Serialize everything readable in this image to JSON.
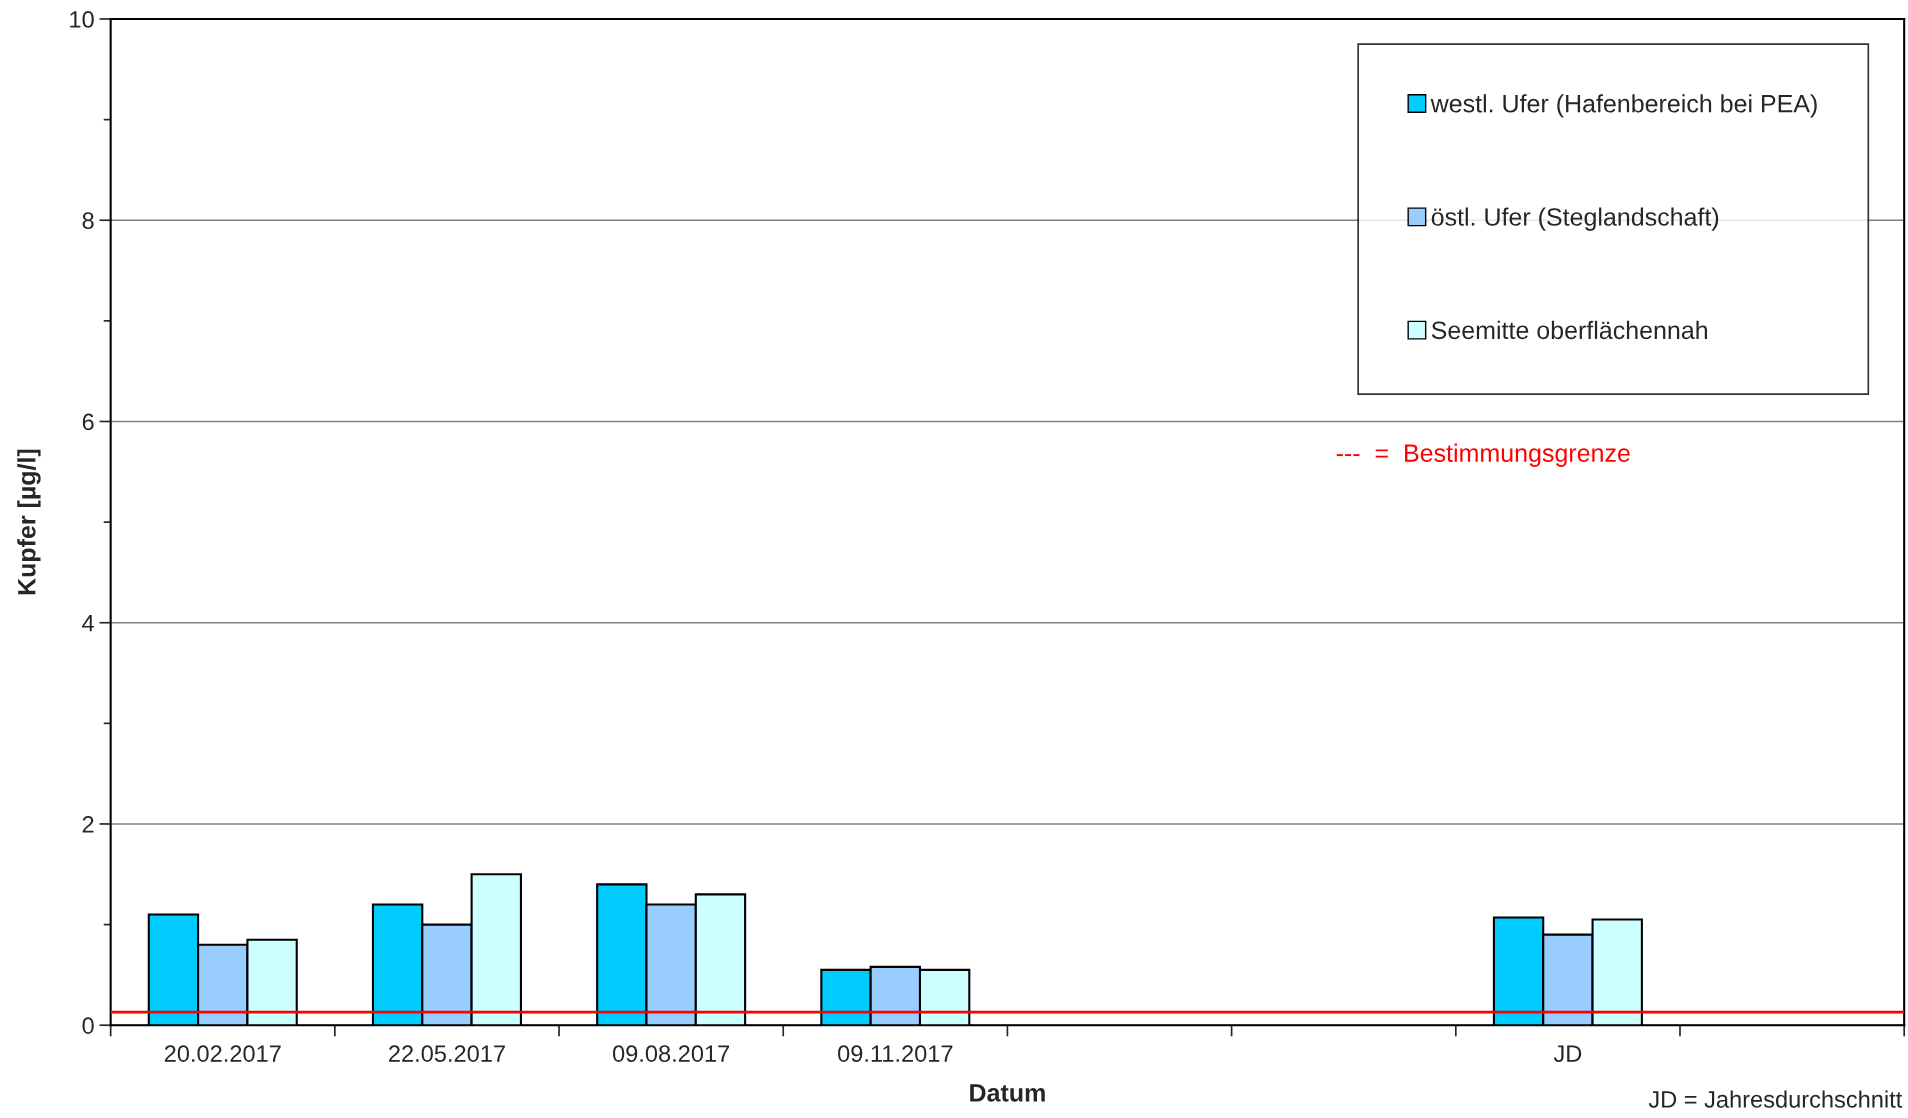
{
  "chart_data": {
    "type": "bar",
    "xlabel": "Datum",
    "ylabel": "Kupfer [µg/l]",
    "categories": [
      "20.02.2017",
      "22.05.2017",
      "09.08.2017",
      "09.11.2017",
      null,
      null,
      "JD",
      null
    ],
    "series": [
      {
        "name": "westl. Ufer (Hafenbereich bei PEA)",
        "color": "#00ccff",
        "values": [
          1.1,
          1.2,
          1.4,
          0.55,
          null,
          null,
          1.07,
          null
        ]
      },
      {
        "name": "östl. Ufer (Steglandschaft)",
        "color": "#99ccff",
        "values": [
          0.8,
          1.0,
          1.2,
          0.58,
          null,
          null,
          0.9,
          null
        ]
      },
      {
        "name": "Seemitte oberflächennah",
        "color": "#ccffff",
        "values": [
          0.85,
          1.5,
          1.3,
          0.55,
          null,
          null,
          1.05,
          null
        ]
      }
    ],
    "ylim": [
      0,
      10
    ],
    "yticks": [
      0,
      {
        "value": 1,
        "label": null
      },
      2,
      {
        "value": 3,
        "label": null
      },
      4,
      {
        "value": 5,
        "label": null
      },
      6,
      {
        "value": 7,
        "label": null
      },
      8,
      {
        "value": 9,
        "label": null
      },
      10
    ],
    "grid": "y",
    "legend": "top right",
    "ref_lines": [
      {
        "axis": "y",
        "value": 0.13,
        "label": "---  =  Bestimmungsgrenze",
        "color": "#ff0000",
        "line_style": "solid"
      }
    ],
    "annotations": [
      "JD = Jahresdurchschnitt"
    ]
  }
}
